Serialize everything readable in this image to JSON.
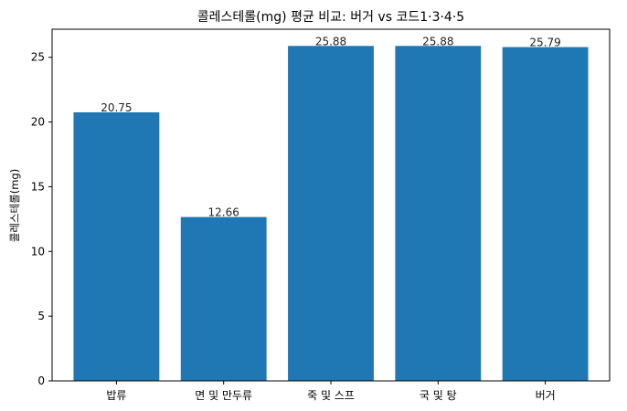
{
  "chart_data": {
    "type": "bar",
    "title": "콜레스테롤(mg) 평균 비교: 버거 vs 코드1·3·4·5",
    "xlabel": "",
    "ylabel": "콜레스테롤(mg)",
    "categories": [
      "밥류",
      "면 및 만두류",
      "죽 및 스프",
      "국 및 탕",
      "버거"
    ],
    "values": [
      20.75,
      12.66,
      25.88,
      25.88,
      25.79
    ],
    "data_labels": [
      "20.75",
      "12.66",
      "25.88",
      "25.88",
      "25.79"
    ],
    "ylim": [
      0,
      27.17
    ],
    "yticks": [
      0,
      5,
      10,
      15,
      20,
      25
    ],
    "grid": false,
    "bar_color": "#1f77b4"
  }
}
